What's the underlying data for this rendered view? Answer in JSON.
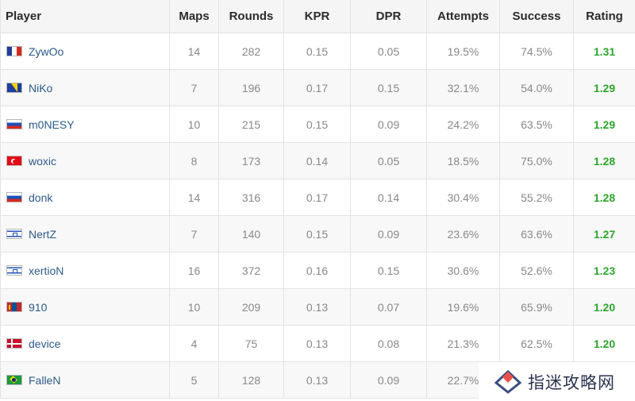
{
  "table": {
    "headers": {
      "player": "Player",
      "maps": "Maps",
      "rounds": "Rounds",
      "kpr": "KPR",
      "dpr": "DPR",
      "attempts": "Attempts",
      "success": "Success",
      "rating": "Rating"
    },
    "rows": [
      {
        "flag": "france-flag-icon",
        "player": "ZywOo",
        "maps": "14",
        "rounds": "282",
        "kpr": "0.15",
        "dpr": "0.05",
        "attempts": "19.5%",
        "success": "74.5%",
        "rating": "1.31"
      },
      {
        "flag": "bosnia-flag-icon",
        "player": "NiKo",
        "maps": "7",
        "rounds": "196",
        "kpr": "0.17",
        "dpr": "0.15",
        "attempts": "32.1%",
        "success": "54.0%",
        "rating": "1.29"
      },
      {
        "flag": "russia-flag-icon",
        "player": "m0NESY",
        "maps": "10",
        "rounds": "215",
        "kpr": "0.15",
        "dpr": "0.09",
        "attempts": "24.2%",
        "success": "63.5%",
        "rating": "1.29"
      },
      {
        "flag": "turkey-flag-icon",
        "player": "woxic",
        "maps": "8",
        "rounds": "173",
        "kpr": "0.14",
        "dpr": "0.05",
        "attempts": "18.5%",
        "success": "75.0%",
        "rating": "1.28"
      },
      {
        "flag": "russia-flag-icon",
        "player": "donk",
        "maps": "14",
        "rounds": "316",
        "kpr": "0.17",
        "dpr": "0.14",
        "attempts": "30.4%",
        "success": "55.2%",
        "rating": "1.28"
      },
      {
        "flag": "israel-flag-icon",
        "player": "NertZ",
        "maps": "7",
        "rounds": "140",
        "kpr": "0.15",
        "dpr": "0.09",
        "attempts": "23.6%",
        "success": "63.6%",
        "rating": "1.27"
      },
      {
        "flag": "israel-flag-icon",
        "player": "xertioN",
        "maps": "16",
        "rounds": "372",
        "kpr": "0.16",
        "dpr": "0.15",
        "attempts": "30.6%",
        "success": "52.6%",
        "rating": "1.23"
      },
      {
        "flag": "mongolia-flag-icon",
        "player": "910",
        "maps": "10",
        "rounds": "209",
        "kpr": "0.13",
        "dpr": "0.07",
        "attempts": "19.6%",
        "success": "65.9%",
        "rating": "1.20"
      },
      {
        "flag": "denmark-flag-icon",
        "player": "device",
        "maps": "4",
        "rounds": "75",
        "kpr": "0.13",
        "dpr": "0.08",
        "attempts": "21.3%",
        "success": "62.5%",
        "rating": "1.20"
      },
      {
        "flag": "brazil-flag-icon",
        "player": "FalleN",
        "maps": "5",
        "rounds": "128",
        "kpr": "0.13",
        "dpr": "0.09",
        "attempts": "22.7%",
        "success": "",
        "rating": ""
      }
    ]
  },
  "watermark": {
    "text": "指迷攻略网",
    "logo_icon": "diamond-logo-icon"
  },
  "colors": {
    "player_link": "#2d5a88",
    "rating": "#2da52d",
    "header_bg": "#f5f5f5"
  }
}
